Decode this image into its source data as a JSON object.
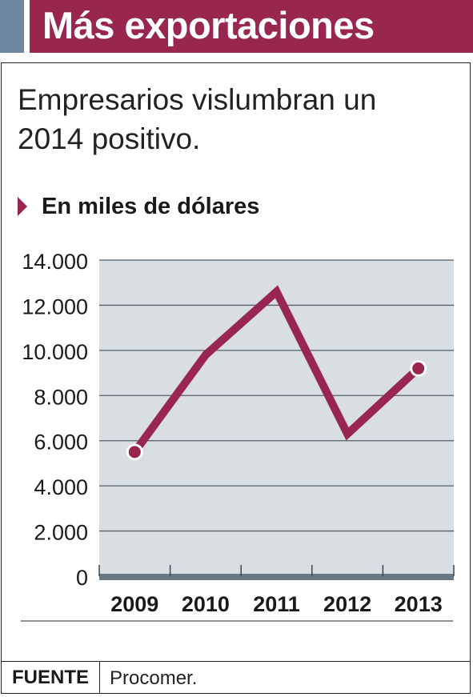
{
  "header": {
    "title": "Más exportaciones",
    "accent_color": "#6f87a3",
    "bar_color": "#98264f"
  },
  "subtitle": "Empresarios vislumbran un 2014 positivo.",
  "unit_label": "En miles de dólares",
  "chart_data": {
    "type": "line",
    "title": "",
    "xlabel": "",
    "ylabel": "",
    "categories": [
      "2009",
      "2010",
      "2011",
      "2012",
      "2013"
    ],
    "y_ticks": [
      "0",
      "2.000",
      "4.000",
      "6.000",
      "8.000",
      "10.000",
      "12.000",
      "14.000"
    ],
    "y_tick_values": [
      0,
      2000,
      4000,
      6000,
      8000,
      10000,
      12000,
      14000
    ],
    "ylim": [
      0,
      14000
    ],
    "grid": true,
    "series": [
      {
        "values": [
          5500,
          9800,
          12600,
          6300,
          9200
        ],
        "color": "#98264f"
      }
    ],
    "end_markers": true,
    "plot_background": "#d9dee3"
  },
  "footer": {
    "source_label": "FUENTE",
    "source_value": "Procomer."
  }
}
